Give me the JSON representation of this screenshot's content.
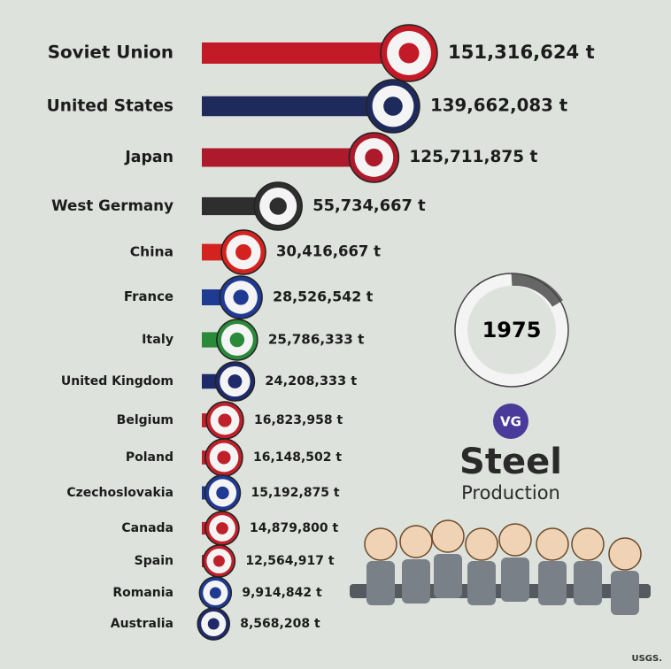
{
  "chart_data": {
    "type": "bar",
    "orientation": "horizontal",
    "title": "Steel",
    "subtitle": "Production",
    "year": "1975",
    "logo": "VG",
    "source": "USGS.",
    "categories": [
      "Soviet Union",
      "United States",
      "Japan",
      "West Germany",
      "China",
      "France",
      "Italy",
      "United Kingdom",
      "Belgium",
      "Poland",
      "Czechoslovakia",
      "Canada",
      "Spain",
      "Romania",
      "Australia"
    ],
    "values": [
      151316624,
      139662083,
      125711875,
      55734667,
      30416667,
      28526542,
      25786333,
      24208333,
      16823958,
      16148502,
      15192875,
      14879800,
      12564917,
      9914842,
      8568208
    ],
    "value_labels": [
      "151,316,624 t",
      "139,662,083 t",
      "125,711,875 t",
      "55,734,667 t",
      "30,416,667 t",
      "28,526,542 t",
      "25,786,333 t",
      "24,208,333 t",
      "16,823,958 t",
      "16,148,502 t",
      "15,192,875 t",
      "14,879,800 t",
      "12,564,917 t",
      "9,914,842 t",
      "8,568,208 t"
    ],
    "colors": [
      "#c21a26",
      "#1f2a5c",
      "#ad1a2c",
      "#2e2e2e",
      "#d4231f",
      "#1f3a93",
      "#2a8a3a",
      "#1f2a6a",
      "#c0202a",
      "#c0202a",
      "#1f3a93",
      "#c0202a",
      "#c0202a",
      "#1f3a93",
      "#1f2a6a"
    ]
  }
}
